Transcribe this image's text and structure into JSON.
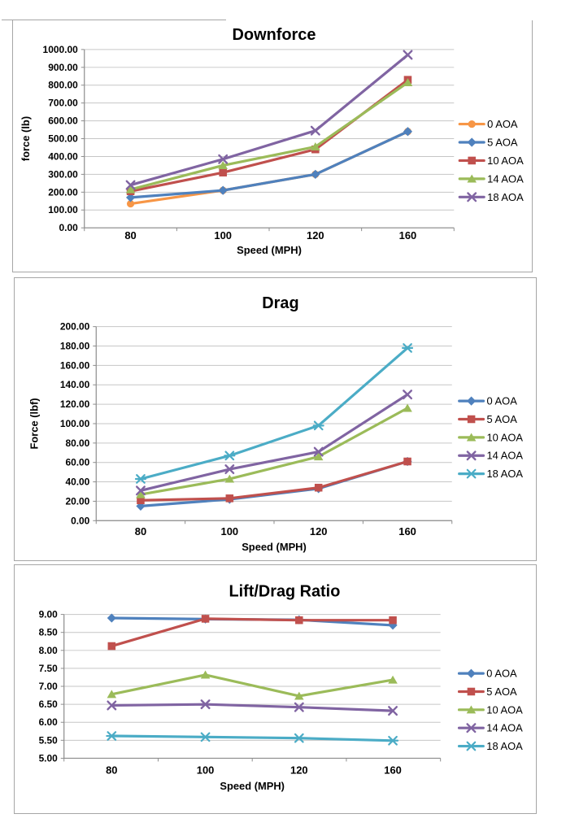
{
  "colors": {
    "frame_border": "#a6a6a6",
    "gridline": "#c6c6c6",
    "axis": "#8c8c8c",
    "text": "#000000",
    "series_orange": "#F79646",
    "series_blue": "#4F81BD",
    "series_red": "#C0504D",
    "series_green": "#9BBB59",
    "series_purple": "#8064A2",
    "series_cyan": "#4BACC6"
  },
  "chart_data": [
    {
      "type": "line",
      "title": "Downforce",
      "xlabel": "Speed (MPH)",
      "ylabel": "force (lb)",
      "categories": [
        "80",
        "100",
        "120",
        "160"
      ],
      "ylim": [
        0,
        1000
      ],
      "ystep": 100,
      "y_tick_decimals": 2,
      "grid": true,
      "legend_position": "right",
      "legend_labels": [
        "0 AOA",
        "5 AOA",
        "10 AOA",
        "14 AOA",
        "18 AOA"
      ],
      "series": [
        {
          "name": "0 AOA",
          "color": "#F79646",
          "marker": "circle",
          "values": [
            135,
            210,
            300,
            540
          ]
        },
        {
          "name": "5 AOA",
          "color": "#4F81BD",
          "marker": "diamond",
          "values": [
            170,
            210,
            300,
            540
          ]
        },
        {
          "name": "10 AOA",
          "color": "#C0504D",
          "marker": "square",
          "values": [
            205,
            310,
            440,
            830
          ]
        },
        {
          "name": "14 AOA",
          "color": "#9BBB59",
          "marker": "triangle",
          "values": [
            215,
            350,
            455,
            815
          ]
        },
        {
          "name": "18 AOA",
          "color": "#8064A2",
          "marker": "x",
          "values": [
            240,
            385,
            545,
            970
          ]
        }
      ]
    },
    {
      "type": "line",
      "title": "Drag",
      "xlabel": "Speed (MPH)",
      "ylabel": "Force (lbf)",
      "categories": [
        "80",
        "100",
        "120",
        "160"
      ],
      "ylim": [
        0,
        200
      ],
      "ystep": 20,
      "y_tick_decimals": 2,
      "grid": true,
      "legend_position": "right",
      "legend_labels": [
        "0 AOA",
        "5 AOA",
        "10 AOA",
        "14 AOA",
        "18 AOA"
      ],
      "series": [
        {
          "name": "0 AOA",
          "color": "#4F81BD",
          "marker": "diamond",
          "values": [
            15,
            22,
            33,
            61
          ]
        },
        {
          "name": "5 AOA",
          "color": "#C0504D",
          "marker": "square",
          "values": [
            21,
            23,
            34,
            61
          ]
        },
        {
          "name": "10 AOA",
          "color": "#9BBB59",
          "marker": "triangle",
          "values": [
            27,
            43,
            66,
            116
          ]
        },
        {
          "name": "14 AOA",
          "color": "#8064A2",
          "marker": "x",
          "values": [
            31,
            53,
            71,
            130
          ]
        },
        {
          "name": "18 AOA",
          "color": "#4BACC6",
          "marker": "star",
          "values": [
            43,
            67,
            98,
            178
          ]
        }
      ]
    },
    {
      "type": "line",
      "title": "Lift/Drag Ratio",
      "xlabel": "Speed (MPH)",
      "ylabel": null,
      "categories": [
        "80",
        "100",
        "120",
        "160"
      ],
      "ylim": [
        5,
        9
      ],
      "ystep": 0.5,
      "y_tick_decimals": 2,
      "grid": true,
      "legend_position": "right",
      "legend_labels": [
        "0 AOA",
        "5 AOA",
        "10 AOA",
        "14 AOA",
        "18 AOA"
      ],
      "series": [
        {
          "name": "0 AOA",
          "color": "#4F81BD",
          "marker": "diamond",
          "values": [
            8.9,
            8.87,
            8.85,
            8.7
          ]
        },
        {
          "name": "5 AOA",
          "color": "#C0504D",
          "marker": "square",
          "values": [
            8.12,
            8.88,
            8.84,
            8.84
          ]
        },
        {
          "name": "10 AOA",
          "color": "#9BBB59",
          "marker": "triangle",
          "values": [
            6.78,
            7.32,
            6.73,
            7.18
          ]
        },
        {
          "name": "14 AOA",
          "color": "#8064A2",
          "marker": "x",
          "values": [
            6.47,
            6.5,
            6.42,
            6.32
          ]
        },
        {
          "name": "18 AOA",
          "color": "#4BACC6",
          "marker": "star",
          "values": [
            5.62,
            5.59,
            5.56,
            5.49
          ]
        }
      ]
    }
  ]
}
